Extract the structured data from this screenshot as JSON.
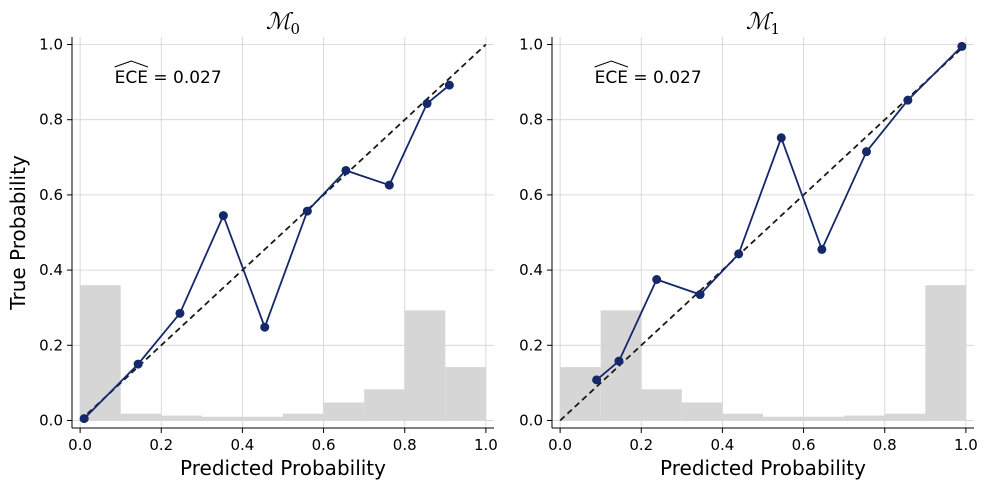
{
  "chart_data": [
    {
      "type": "line",
      "title": "ℳ",
      "title_subscript": "0",
      "xlabel": "Predicted Probability",
      "ylabel": "True Probability",
      "xlim": [
        -0.02,
        1.02
      ],
      "ylim": [
        -0.02,
        1.02
      ],
      "xticks": [
        0.0,
        0.2,
        0.4,
        0.6,
        0.8,
        1.0
      ],
      "yticks": [
        0.0,
        0.2,
        0.4,
        0.6,
        0.8,
        1.0
      ],
      "xtick_labels": [
        "0.0",
        "0.2",
        "0.4",
        "0.6",
        "0.8",
        "1.0"
      ],
      "ytick_labels": [
        "0.0",
        "0.2",
        "0.4",
        "0.6",
        "0.8",
        "1.0"
      ],
      "grid": true,
      "annotation": {
        "label": "ECE",
        "equals": " = 0.027"
      },
      "calibration": {
        "x": [
          0.01,
          0.143,
          0.246,
          0.353,
          0.455,
          0.56,
          0.655,
          0.762,
          0.855,
          0.91
        ],
        "y": [
          0.005,
          0.15,
          0.285,
          0.545,
          0.248,
          0.557,
          0.665,
          0.626,
          0.843,
          0.892
        ],
        "color": "#14286a"
      },
      "diagonal": {
        "x": [
          0.0,
          1.0
        ],
        "y": [
          0.0,
          1.0
        ],
        "color": "#1a1a1a",
        "style": "dashed"
      },
      "histogram": {
        "bin_edges": [
          0.0,
          0.1,
          0.2,
          0.3,
          0.4,
          0.5,
          0.6,
          0.7,
          0.8,
          0.9,
          1.0
        ],
        "values": [
          0.36,
          0.018,
          0.013,
          0.01,
          0.01,
          0.018,
          0.048,
          0.083,
          0.293,
          0.142
        ],
        "color": "#d6d6d6"
      }
    },
    {
      "type": "line",
      "title": "ℳ",
      "title_subscript": "1",
      "xlabel": "Predicted Probability",
      "ylabel": "",
      "xlim": [
        -0.02,
        1.02
      ],
      "ylim": [
        -0.02,
        1.02
      ],
      "xticks": [
        0.0,
        0.2,
        0.4,
        0.6,
        0.8,
        1.0
      ],
      "yticks": [
        0.0,
        0.2,
        0.4,
        0.6,
        0.8,
        1.0
      ],
      "xtick_labels": [
        "0.0",
        "0.2",
        "0.4",
        "0.6",
        "0.8",
        "1.0"
      ],
      "ytick_labels": [
        "0.0",
        "0.2",
        "0.4",
        "0.6",
        "0.8",
        "1.0"
      ],
      "grid": true,
      "annotation": {
        "label": "ECE",
        "equals": " = 0.027"
      },
      "calibration": {
        "x": [
          0.09,
          0.145,
          0.238,
          0.345,
          0.44,
          0.545,
          0.645,
          0.755,
          0.857,
          0.99
        ],
        "y": [
          0.108,
          0.158,
          0.375,
          0.335,
          0.443,
          0.752,
          0.455,
          0.715,
          0.852,
          0.995
        ],
        "color": "#14286a"
      },
      "diagonal": {
        "x": [
          0.0,
          1.0
        ],
        "y": [
          0.0,
          1.0
        ],
        "color": "#1a1a1a",
        "style": "dashed"
      },
      "histogram": {
        "bin_edges": [
          0.0,
          0.1,
          0.2,
          0.3,
          0.4,
          0.5,
          0.6,
          0.7,
          0.8,
          0.9,
          1.0
        ],
        "values": [
          0.142,
          0.293,
          0.083,
          0.048,
          0.018,
          0.01,
          0.01,
          0.013,
          0.018,
          0.36
        ],
        "color": "#d6d6d6"
      }
    }
  ]
}
